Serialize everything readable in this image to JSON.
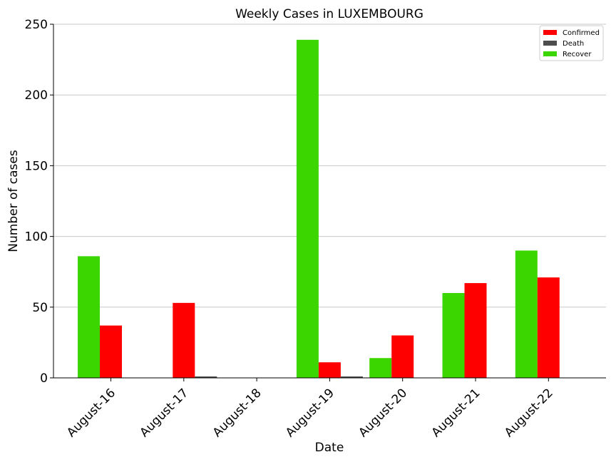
{
  "chart_data": {
    "type": "bar",
    "title": "Weekly Cases in LUXEMBOURG",
    "xlabel": "Date",
    "ylabel": "Number of cases",
    "ylim": [
      0,
      250
    ],
    "yticks": [
      0,
      50,
      100,
      150,
      200,
      250
    ],
    "grid": "horizontal",
    "legend_position": "top-right",
    "categories": [
      "August-16",
      "August-17",
      "August-18",
      "August-19",
      "August-20",
      "August-21",
      "August-22"
    ],
    "series": [
      {
        "name": "Recover",
        "color": "#3bd600",
        "values": [
          86,
          0,
          0,
          239,
          14,
          60,
          90
        ]
      },
      {
        "name": "Confirmed",
        "color": "#ff0000",
        "values": [
          37,
          53,
          0,
          11,
          30,
          67,
          71
        ]
      },
      {
        "name": "Death",
        "color": "#4d4d4d",
        "values": [
          0,
          1,
          0,
          1,
          0,
          0,
          0
        ]
      }
    ],
    "legend_order": [
      "Confirmed",
      "Death",
      "Recover"
    ]
  }
}
